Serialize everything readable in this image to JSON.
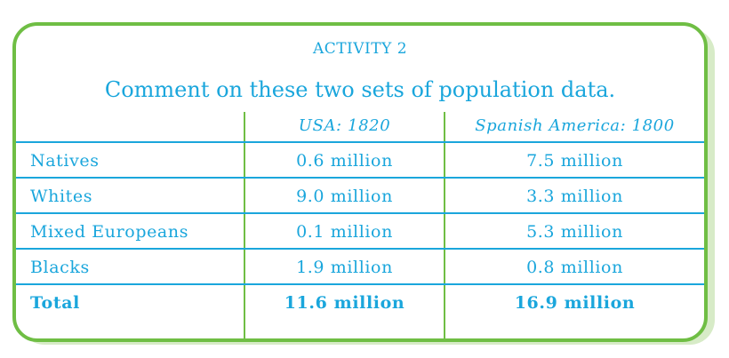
{
  "activity_label": "ACTIVITY 2",
  "instruction": "Comment on these two sets of population data.",
  "table": {
    "headers": [
      "",
      "USA: 1820",
      "Spanish America: 1800"
    ],
    "rows": [
      [
        "Natives",
        "0.6 million",
        "7.5 million"
      ],
      [
        "Whites",
        "9.0 million",
        "3.3 million"
      ],
      [
        "Mixed Europeans",
        "0.1 million",
        "5.3 million"
      ],
      [
        "Blacks",
        "1.9 million",
        "0.8 million"
      ]
    ],
    "total": [
      "Total",
      "11.6 million",
      "16.9 million"
    ]
  },
  "colors": {
    "border": "#6fbe44",
    "text": "#1aa6dc",
    "shadow": "#d7ebc7"
  }
}
